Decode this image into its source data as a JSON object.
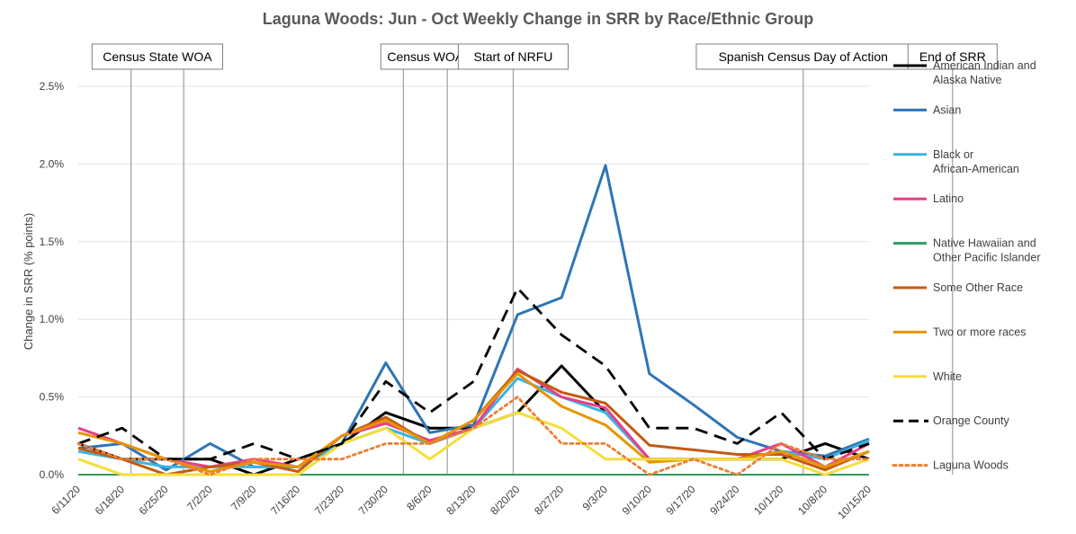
{
  "chart_data": {
    "type": "line",
    "title": "Laguna Woods: Jun - Oct Weekly Change in SRR by Race/Ethnic Group",
    "xlabel": "",
    "ylabel": "Change in SRR (% points)",
    "ylim": [
      0,
      2.5
    ],
    "yticks": [
      0,
      0.5,
      1.0,
      1.5,
      2.0,
      2.5
    ],
    "ytick_labels": [
      "0.0%",
      "0.5%",
      "1.0%",
      "1.5%",
      "2.0%",
      "2.5%"
    ],
    "grid": true,
    "legend_position": "right",
    "categories": [
      "6/11/20",
      "6/18/20",
      "6/25/20",
      "7/2/20",
      "7/9/20",
      "7/16/20",
      "7/23/20",
      "7/30/20",
      "8/6/20",
      "8/13/20",
      "8/20/20",
      "8/27/20",
      "9/3/20",
      "9/10/20",
      "9/17/20",
      "9/24/20",
      "10/1/20",
      "10/8/20",
      "10/15/20"
    ],
    "events": [
      {
        "label": "Census State WOA",
        "positions": [
          1.2,
          2.4
        ]
      },
      {
        "label": "Census WOA",
        "positions": [
          7.4,
          8.4
        ]
      },
      {
        "label": "Start of NRFU",
        "positions": [
          9.9
        ]
      },
      {
        "label": "Spanish Census Day of Action",
        "positions": [
          16.5
        ]
      },
      {
        "label": "End of SRR",
        "positions": [
          19.9
        ]
      }
    ],
    "series": [
      {
        "name": "American Indian and Alaska Native",
        "color": "#000000",
        "dash": "solid",
        "values": [
          0.2,
          0.1,
          0.1,
          0.1,
          0.0,
          0.1,
          0.2,
          0.4,
          0.3,
          0.3,
          0.4,
          0.7,
          0.4,
          0.1,
          0.1,
          0.1,
          0.1,
          0.2,
          0.1
        ]
      },
      {
        "name": "Asian",
        "color": "#2E75B6",
        "dash": "solid",
        "values": [
          0.17,
          0.2,
          0.03,
          0.2,
          0.05,
          0.05,
          0.2,
          0.72,
          0.27,
          0.32,
          1.03,
          1.14,
          1.99,
          0.65,
          0.45,
          0.24,
          0.15,
          0.12,
          0.23
        ]
      },
      {
        "name": "Black or African-American",
        "color": "#3CB4E0",
        "dash": "solid",
        "values": [
          0.15,
          0.1,
          0.05,
          0.05,
          0.05,
          0.05,
          0.2,
          0.3,
          0.2,
          0.3,
          0.62,
          0.5,
          0.4,
          0.1,
          0.1,
          0.1,
          0.15,
          0.1,
          0.22
        ]
      },
      {
        "name": "Latino",
        "color": "#E83E8C",
        "dash": "solid",
        "values": [
          0.3,
          0.2,
          0.1,
          0.05,
          0.1,
          0.05,
          0.25,
          0.33,
          0.22,
          0.3,
          0.68,
          0.5,
          0.43,
          0.1,
          0.1,
          0.1,
          0.2,
          0.05,
          0.2
        ]
      },
      {
        "name": "Native Hawaiian and Other Pacific Islander",
        "color": "#2E9E5F",
        "dash": "solid",
        "values": [
          0.0,
          0.0,
          0.0,
          0.0,
          0.0,
          0.0,
          0.0,
          0.0,
          0.0,
          0.0,
          0.0,
          0.0,
          0.0,
          0.0,
          0.0,
          0.0,
          0.0,
          0.0,
          0.0
        ]
      },
      {
        "name": "Some Other Race",
        "color": "#C55A11",
        "dash": "solid",
        "values": [
          0.17,
          0.1,
          0.0,
          0.05,
          0.08,
          0.02,
          0.25,
          0.37,
          0.2,
          0.35,
          0.67,
          0.53,
          0.46,
          0.19,
          0.16,
          0.13,
          0.13,
          0.03,
          0.15
        ]
      },
      {
        "name": "Two or more races",
        "color": "#E69500",
        "dash": "solid",
        "values": [
          0.27,
          0.2,
          0.1,
          0.02,
          0.08,
          0.05,
          0.25,
          0.35,
          0.2,
          0.35,
          0.65,
          0.44,
          0.32,
          0.08,
          0.1,
          0.1,
          0.15,
          0.05,
          0.15
        ]
      },
      {
        "name": "White",
        "color": "#F5DE3A",
        "dash": "solid",
        "values": [
          0.1,
          0.0,
          0.0,
          0.0,
          0.0,
          0.0,
          0.2,
          0.3,
          0.1,
          0.3,
          0.4,
          0.3,
          0.1,
          0.1,
          0.1,
          0.1,
          0.1,
          0.0,
          0.1
        ]
      },
      {
        "name": "Orange County",
        "color": "#000000",
        "dash": "dashed",
        "values": [
          0.2,
          0.3,
          0.1,
          0.1,
          0.2,
          0.1,
          0.2,
          0.6,
          0.4,
          0.6,
          1.2,
          0.9,
          0.7,
          0.3,
          0.3,
          0.2,
          0.4,
          0.1,
          0.2
        ]
      },
      {
        "name": "Laguna Woods",
        "color": "#ED7D31",
        "dash": "dotted",
        "values": [
          0.2,
          0.1,
          0.1,
          0.0,
          0.1,
          0.1,
          0.1,
          0.2,
          0.2,
          0.3,
          0.5,
          0.2,
          0.2,
          0.0,
          0.1,
          0.0,
          0.2,
          0.1,
          0.1
        ]
      }
    ]
  }
}
